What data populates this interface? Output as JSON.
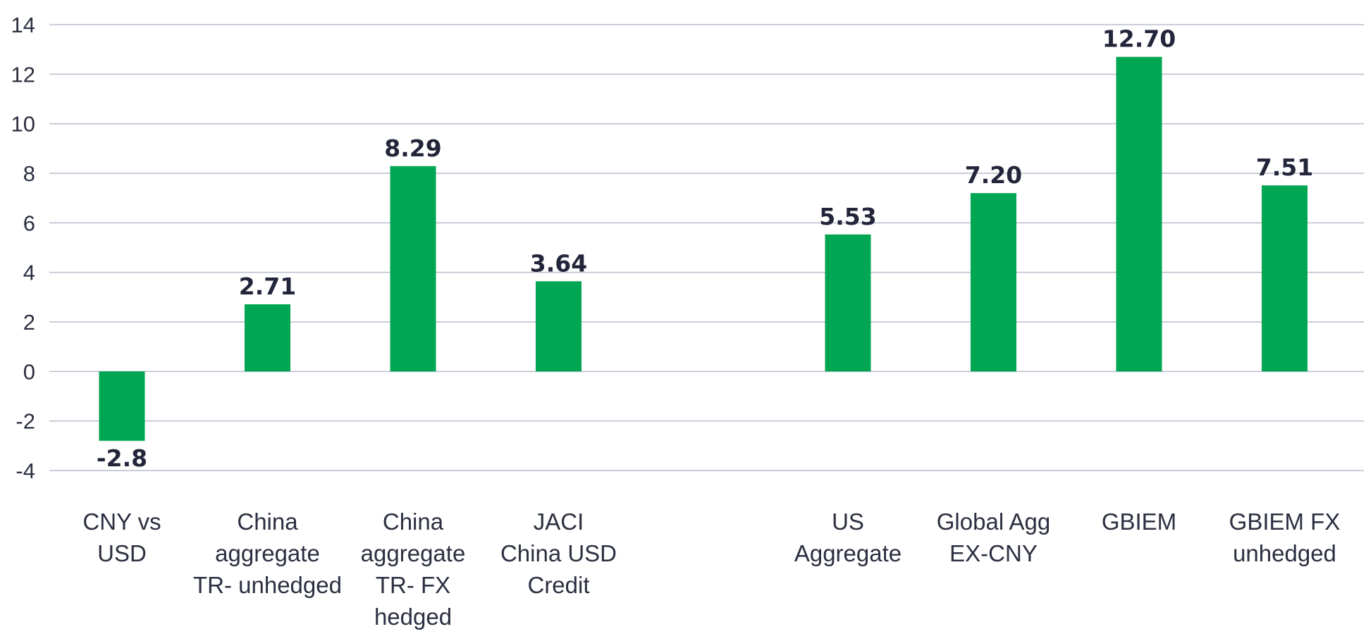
{
  "chart_data": {
    "type": "bar",
    "title": "",
    "xlabel": "",
    "ylabel": "",
    "ylim": [
      -4,
      14
    ],
    "yticks": [
      -4,
      -2,
      0,
      2,
      4,
      6,
      8,
      10,
      12,
      14
    ],
    "grid": true,
    "bar_color": "#00a651",
    "categories": [
      [
        "CNY vs",
        "USD"
      ],
      [
        "China",
        "aggregate",
        "TR- unhedged"
      ],
      [
        "China",
        "aggregate",
        "TR- FX",
        "hedged"
      ],
      [
        "JACI",
        "China USD",
        "Credit"
      ],
      [
        "US",
        "Aggregate"
      ],
      [
        "Global Agg",
        "EX-CNY"
      ],
      [
        "GBIEM"
      ],
      [
        "GBIEM FX",
        "unhedged"
      ]
    ],
    "values": [
      -2.8,
      2.71,
      8.29,
      3.64,
      5.53,
      7.2,
      12.7,
      7.51
    ],
    "value_labels": [
      "-2.8",
      "2.71",
      "8.29",
      "3.64",
      "5.53",
      "7.20",
      "12.70",
      "7.51"
    ]
  }
}
